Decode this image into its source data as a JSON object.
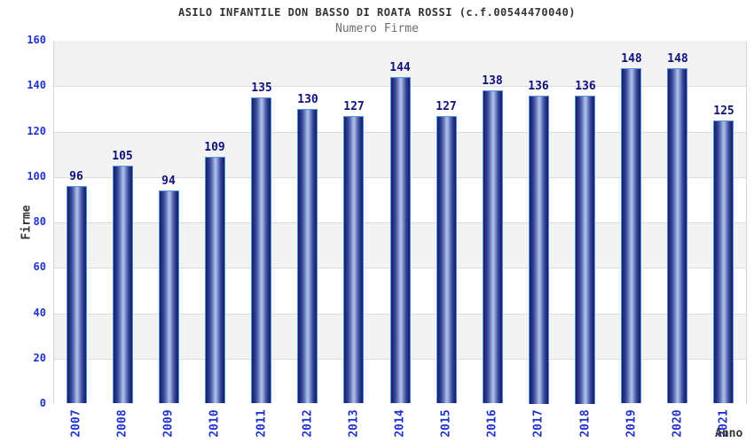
{
  "header": {
    "title": "ASILO INFANTILE DON BASSO DI ROATA ROSSI (c.f.00544470040)",
    "subtitle": "Numero Firme"
  },
  "chart_data": {
    "type": "bar",
    "title": "ASILO INFANTILE DON BASSO DI ROATA ROSSI (c.f.00544470040)",
    "subtitle": "Numero Firme",
    "categories": [
      "2007",
      "2008",
      "2009",
      "2010",
      "2011",
      "2012",
      "2013",
      "2014",
      "2015",
      "2016",
      "2017",
      "2018",
      "2019",
      "2020",
      "2021"
    ],
    "values": [
      96,
      105,
      94,
      109,
      135,
      130,
      127,
      144,
      127,
      138,
      136,
      136,
      148,
      148,
      125
    ],
    "xlabel": "Anno",
    "ylabel": "Firme",
    "ylim": [
      0,
      160
    ],
    "ytick_step": 20,
    "yticks": [
      0,
      20,
      40,
      60,
      80,
      100,
      120,
      140,
      160
    ],
    "grid": "horizontal-alternating-bands",
    "legend": "none",
    "value_labels_shown": true
  },
  "colors": {
    "bar_dark": "#1b2a78",
    "bar_light": "#b3c1ec",
    "bar_outline": "#4f94e3",
    "value_label": "#10107a",
    "tick_label": "#2233cc",
    "title": "#333333",
    "subtitle": "#6e6e6e",
    "axis_title": "#333333",
    "band_gray": "#f3f3f3",
    "band_white": "#ffffff",
    "plot_border": "#d4d4d4"
  }
}
